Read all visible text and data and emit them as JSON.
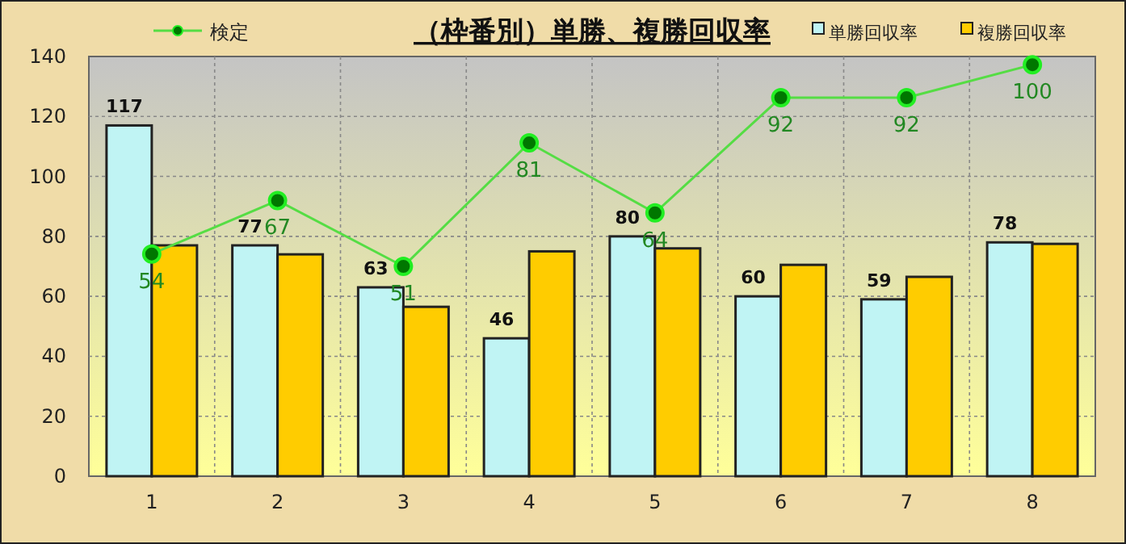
{
  "chart_data": {
    "type": "bar",
    "title": "（枠番別）単勝、複勝回収率",
    "categories": [
      "1",
      "2",
      "3",
      "4",
      "5",
      "6",
      "7",
      "8"
    ],
    "series": [
      {
        "name": "単勝回収率",
        "color": "#c0f4f4",
        "values": [
          117,
          77,
          63,
          46,
          80,
          60,
          59,
          78
        ],
        "value_labels": [
          "117",
          "77",
          "63",
          "46",
          "80",
          "60",
          "59",
          "78"
        ]
      },
      {
        "name": "複勝回収率",
        "color": "#ffcc00",
        "values": [
          77,
          74,
          56.5,
          75,
          76,
          70.5,
          66.5,
          77.5
        ]
      },
      {
        "name": "検定",
        "type": "line",
        "axis": "y2",
        "color": "#55dd44",
        "marker": "circle",
        "values": [
          54,
          67,
          51,
          81,
          64,
          92,
          92,
          100
        ],
        "value_labels": [
          "54",
          "67",
          "51",
          "81",
          "64",
          "92",
          "92",
          "100"
        ]
      }
    ],
    "ylim": [
      0,
      140
    ],
    "yticks": [
      0,
      20,
      40,
      60,
      80,
      100,
      120,
      140
    ],
    "y2lim": [
      0,
      102
    ],
    "grid": true,
    "legend": "top"
  }
}
